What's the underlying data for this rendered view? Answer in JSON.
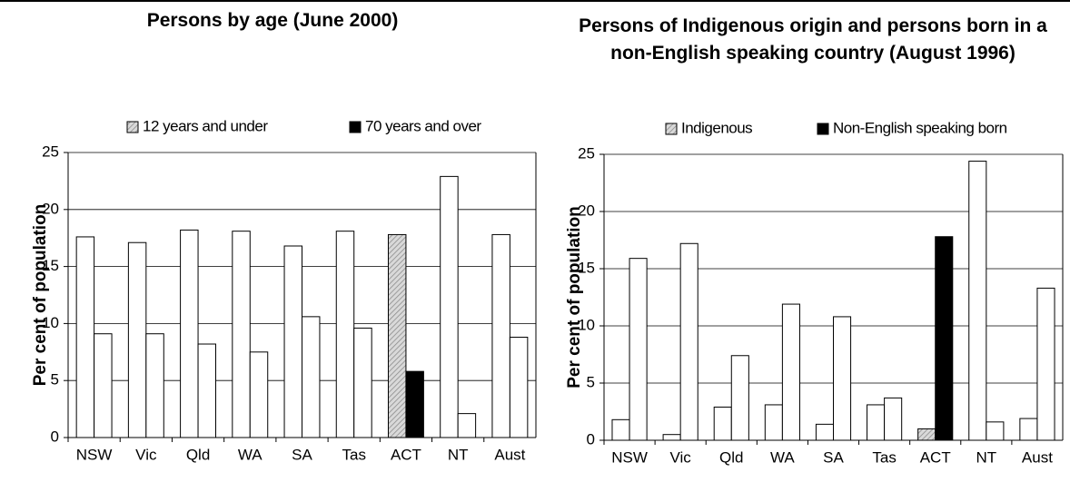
{
  "chart_data": [
    {
      "type": "bar",
      "title": "Persons by age (June 2000)",
      "y_label": "Per cent of population",
      "categories": [
        "NSW",
        "Vic",
        "Qld",
        "WA",
        "SA",
        "Tas",
        "ACT",
        "NT",
        "Aust"
      ],
      "series": [
        {
          "name": "12 years and under",
          "color": "#bfbfbf",
          "values": [
            17.6,
            17.1,
            18.2,
            18.1,
            16.8,
            18.1,
            17.8,
            22.9,
            17.8
          ]
        },
        {
          "name": "70 years and over",
          "color": "#000000",
          "values": [
            9.1,
            9.1,
            8.2,
            7.5,
            10.6,
            9.6,
            5.8,
            2.1,
            8.8
          ]
        }
      ],
      "highlight_index": 6,
      "ylim": [
        0,
        25
      ],
      "yticks": [
        0,
        5,
        10,
        15,
        20,
        25
      ],
      "grid": true
    },
    {
      "type": "bar",
      "title": "Persons of Indigenous origin and persons born in a non-English speaking country (August 1996)",
      "y_label": "Per cent of population",
      "categories": [
        "NSW",
        "Vic",
        "Qld",
        "WA",
        "SA",
        "Tas",
        "ACT",
        "NT",
        "Aust"
      ],
      "series": [
        {
          "name": "Indigenous",
          "color": "#bfbfbf",
          "values": [
            1.8,
            0.5,
            2.9,
            3.1,
            1.4,
            3.1,
            1.0,
            24.4,
            1.9
          ]
        },
        {
          "name": "Non-English speaking born",
          "color": "#000000",
          "values": [
            15.9,
            17.2,
            7.4,
            11.9,
            10.8,
            3.7,
            17.8,
            1.6,
            13.3
          ]
        }
      ],
      "highlight_index": 6,
      "ylim": [
        0,
        25
      ],
      "yticks": [
        0,
        5,
        10,
        15,
        20,
        25
      ],
      "grid": true
    }
  ]
}
